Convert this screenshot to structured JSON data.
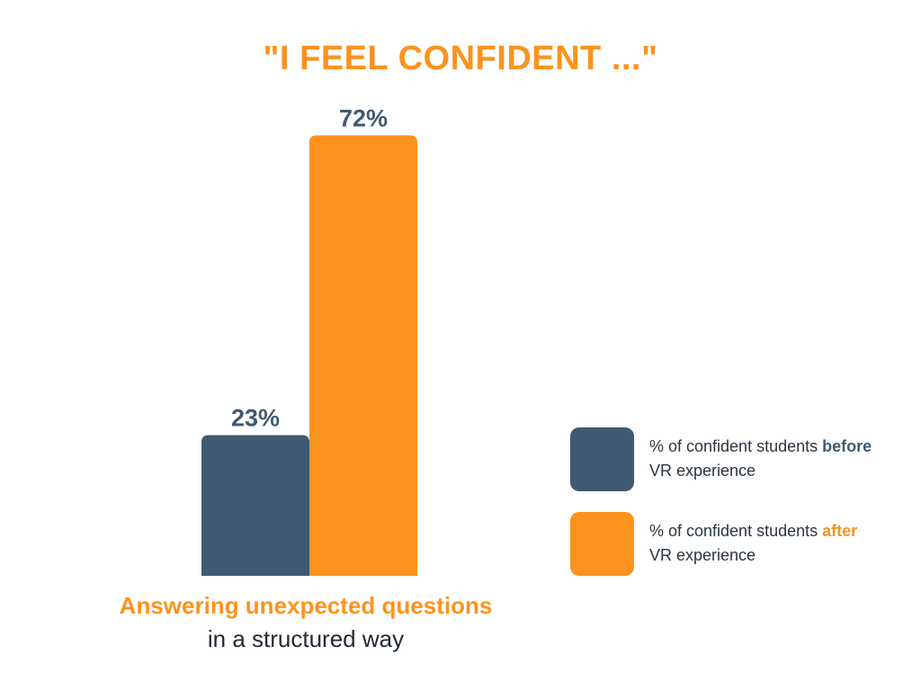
{
  "colors": {
    "before": "#405a72",
    "after": "#fb931d",
    "text": "#2c3540"
  },
  "chart_data": {
    "type": "bar",
    "title": "\"I FEEL CONFIDENT ...\"",
    "categories": [
      "Answering unexpected questions in a structured way"
    ],
    "category_label": {
      "highlight": "Answering unexpected questions",
      "rest": " in a structured way"
    },
    "series": [
      {
        "name": "% of confident students before VR experience",
        "values": [
          23
        ],
        "labels": [
          "23%"
        ]
      },
      {
        "name": "% of confident students after VR experience",
        "values": [
          72
        ],
        "labels": [
          "72%"
        ]
      }
    ],
    "ylim": [
      0,
      100
    ],
    "grid": false,
    "legend": {
      "placement": "right",
      "items": [
        {
          "prefix": "% of confident students ",
          "emph": "before",
          "suffix": "VR experience"
        },
        {
          "prefix": "% of confident students ",
          "emph": "after",
          "suffix": "VR experience"
        }
      ]
    }
  }
}
